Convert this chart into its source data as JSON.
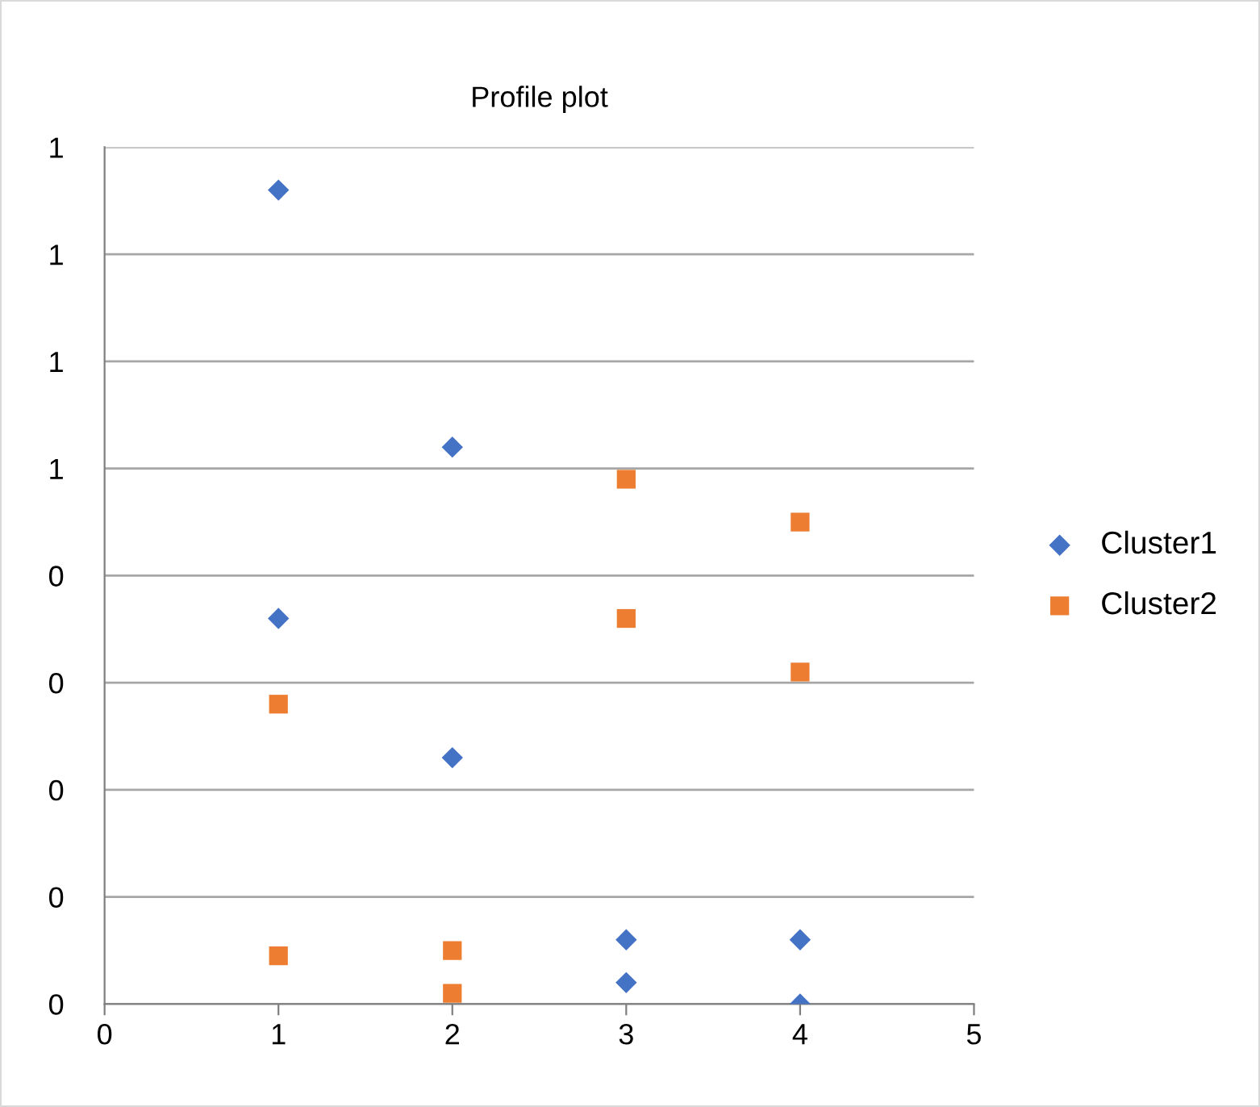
{
  "chart_data": {
    "type": "scatter",
    "title": "Profile plot",
    "series": [
      {
        "name": "Cluster1",
        "color": "#4472c4",
        "marker": "diamond",
        "x": [
          1,
          1,
          2,
          2,
          3,
          3,
          4,
          4
        ],
        "values": [
          0.76,
          0.36,
          0.52,
          0.23,
          0.06,
          0.02,
          0.06,
          0
        ]
      },
      {
        "name": "Cluster2",
        "color": "#ed7d31",
        "marker": "square",
        "x": [
          1,
          1,
          2,
          2,
          3,
          3,
          4,
          4
        ],
        "values": [
          0.28,
          0.045,
          0.05,
          0.01,
          0.49,
          0.36,
          0.45,
          0.31
        ]
      }
    ],
    "xlim": [
      0,
      5
    ],
    "xticks": [
      0,
      1,
      2,
      3,
      4,
      5
    ],
    "ylim": [
      0,
      0.8
    ],
    "yticks": [
      {
        "value": 0,
        "label": "0"
      },
      {
        "value": 0.1,
        "label": "0"
      },
      {
        "value": 0.2,
        "label": "0"
      },
      {
        "value": 0.3,
        "label": "0"
      },
      {
        "value": 0.4,
        "label": "0"
      },
      {
        "value": 0.5,
        "label": "1"
      },
      {
        "value": 0.6,
        "label": "1"
      },
      {
        "value": 0.7,
        "label": "1"
      },
      {
        "value": 0.8,
        "label": "1"
      }
    ],
    "grid": "y",
    "legend": "right"
  }
}
